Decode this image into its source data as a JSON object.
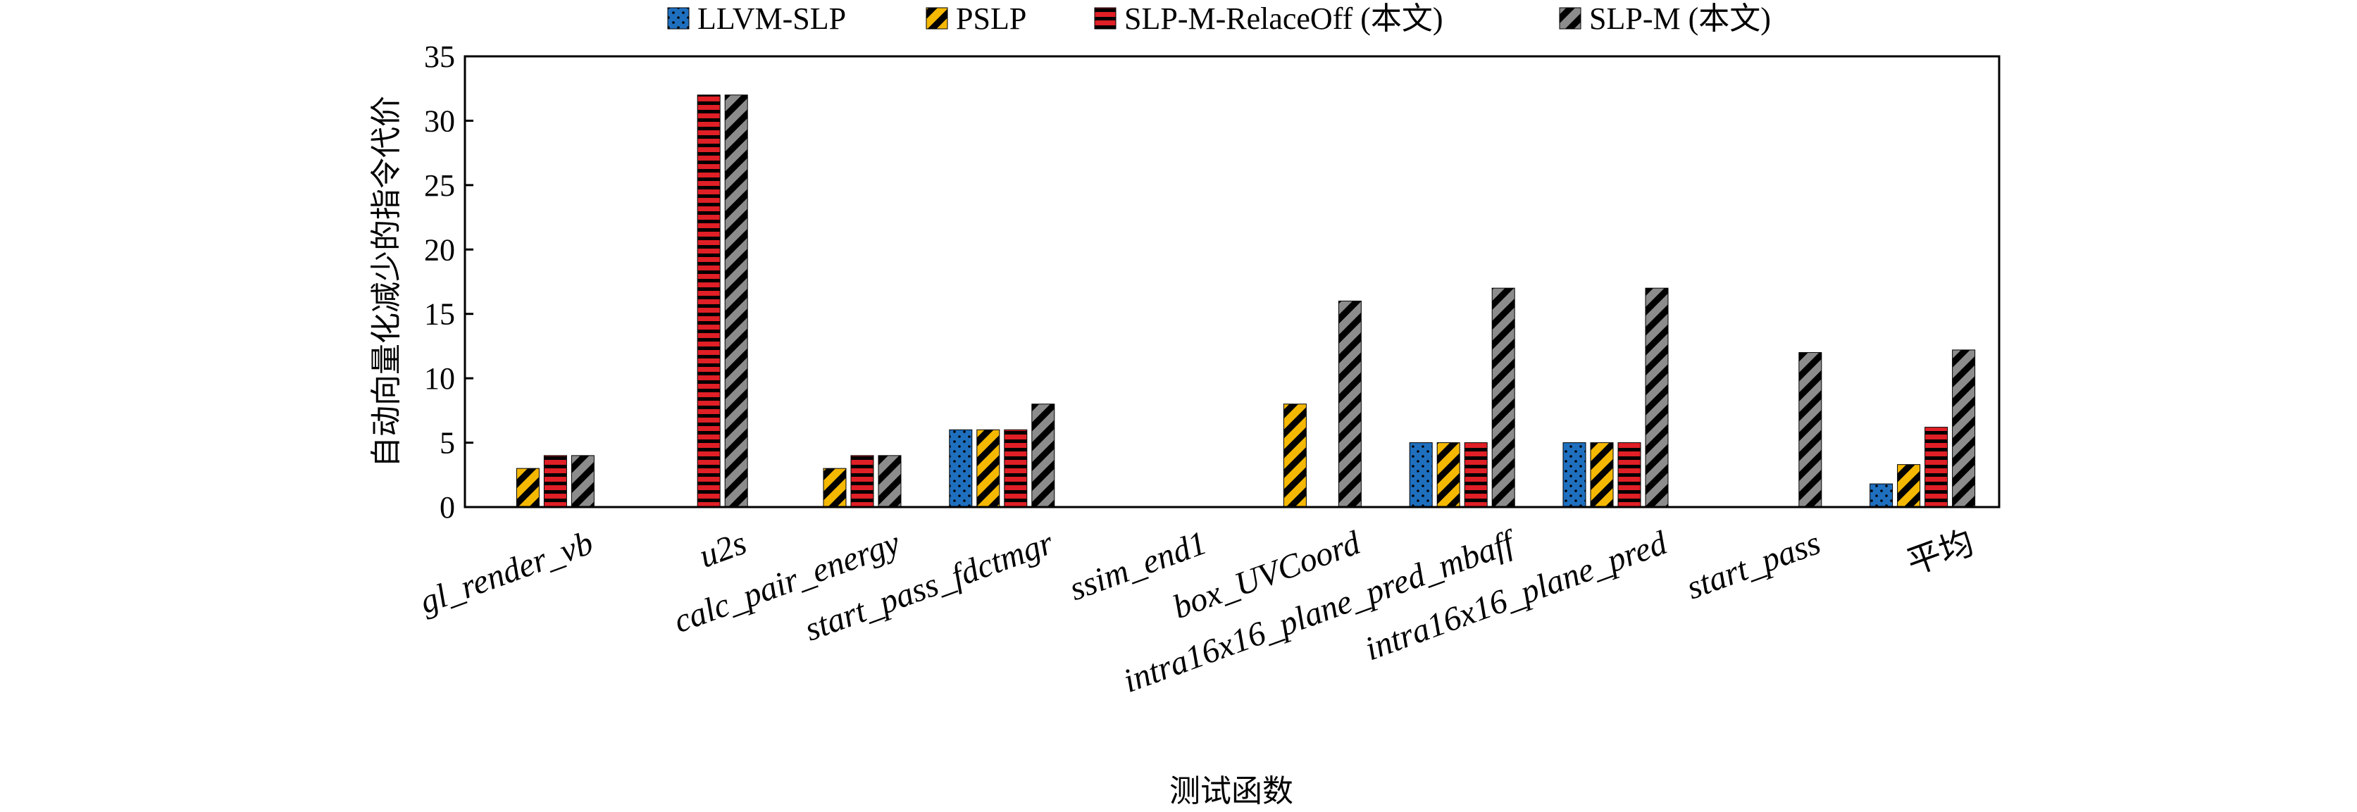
{
  "chart_data": {
    "type": "bar",
    "title": "",
    "xlabel": "测试函数",
    "ylabel": "自动向量化减少的指令代价",
    "ylim": [
      0,
      35
    ],
    "yticks": [
      0,
      5,
      10,
      15,
      20,
      25,
      30,
      35
    ],
    "grid": false,
    "legend_position": "top",
    "categories": [
      "gl_render_vb",
      "u2s",
      "calc_pair_energy",
      "start_pass_fdctmgr",
      "ssim_end1",
      "box_UVCoord",
      "intra16x16_plane_pred_mbaff",
      "intra16x16_plane_pred",
      "start_pass",
      "平均"
    ],
    "series": [
      {
        "name": "LLVM-SLP",
        "color": "#1f6fbf",
        "pattern": "dots",
        "values": [
          0,
          0,
          0,
          6,
          0,
          0,
          5,
          5,
          0,
          1.8
        ]
      },
      {
        "name": "PSLP",
        "color": "#f5b800",
        "pattern": "diagonal-black-stripes",
        "values": [
          3,
          0,
          3,
          6,
          0,
          8,
          5,
          5,
          0,
          3.3
        ]
      },
      {
        "name": "SLP-M-RelaceOff (本文)",
        "color": "#e01f26",
        "pattern": "horizontal-black-stripes",
        "values": [
          4,
          32,
          4,
          6,
          0,
          0,
          5,
          5,
          0,
          6.2
        ]
      },
      {
        "name": "SLP-M (本文)",
        "color": "#8c8c8c",
        "pattern": "diagonal-black-stripes",
        "values": [
          4,
          32,
          4,
          8,
          0,
          16,
          17,
          17,
          12,
          12.2
        ]
      }
    ]
  }
}
